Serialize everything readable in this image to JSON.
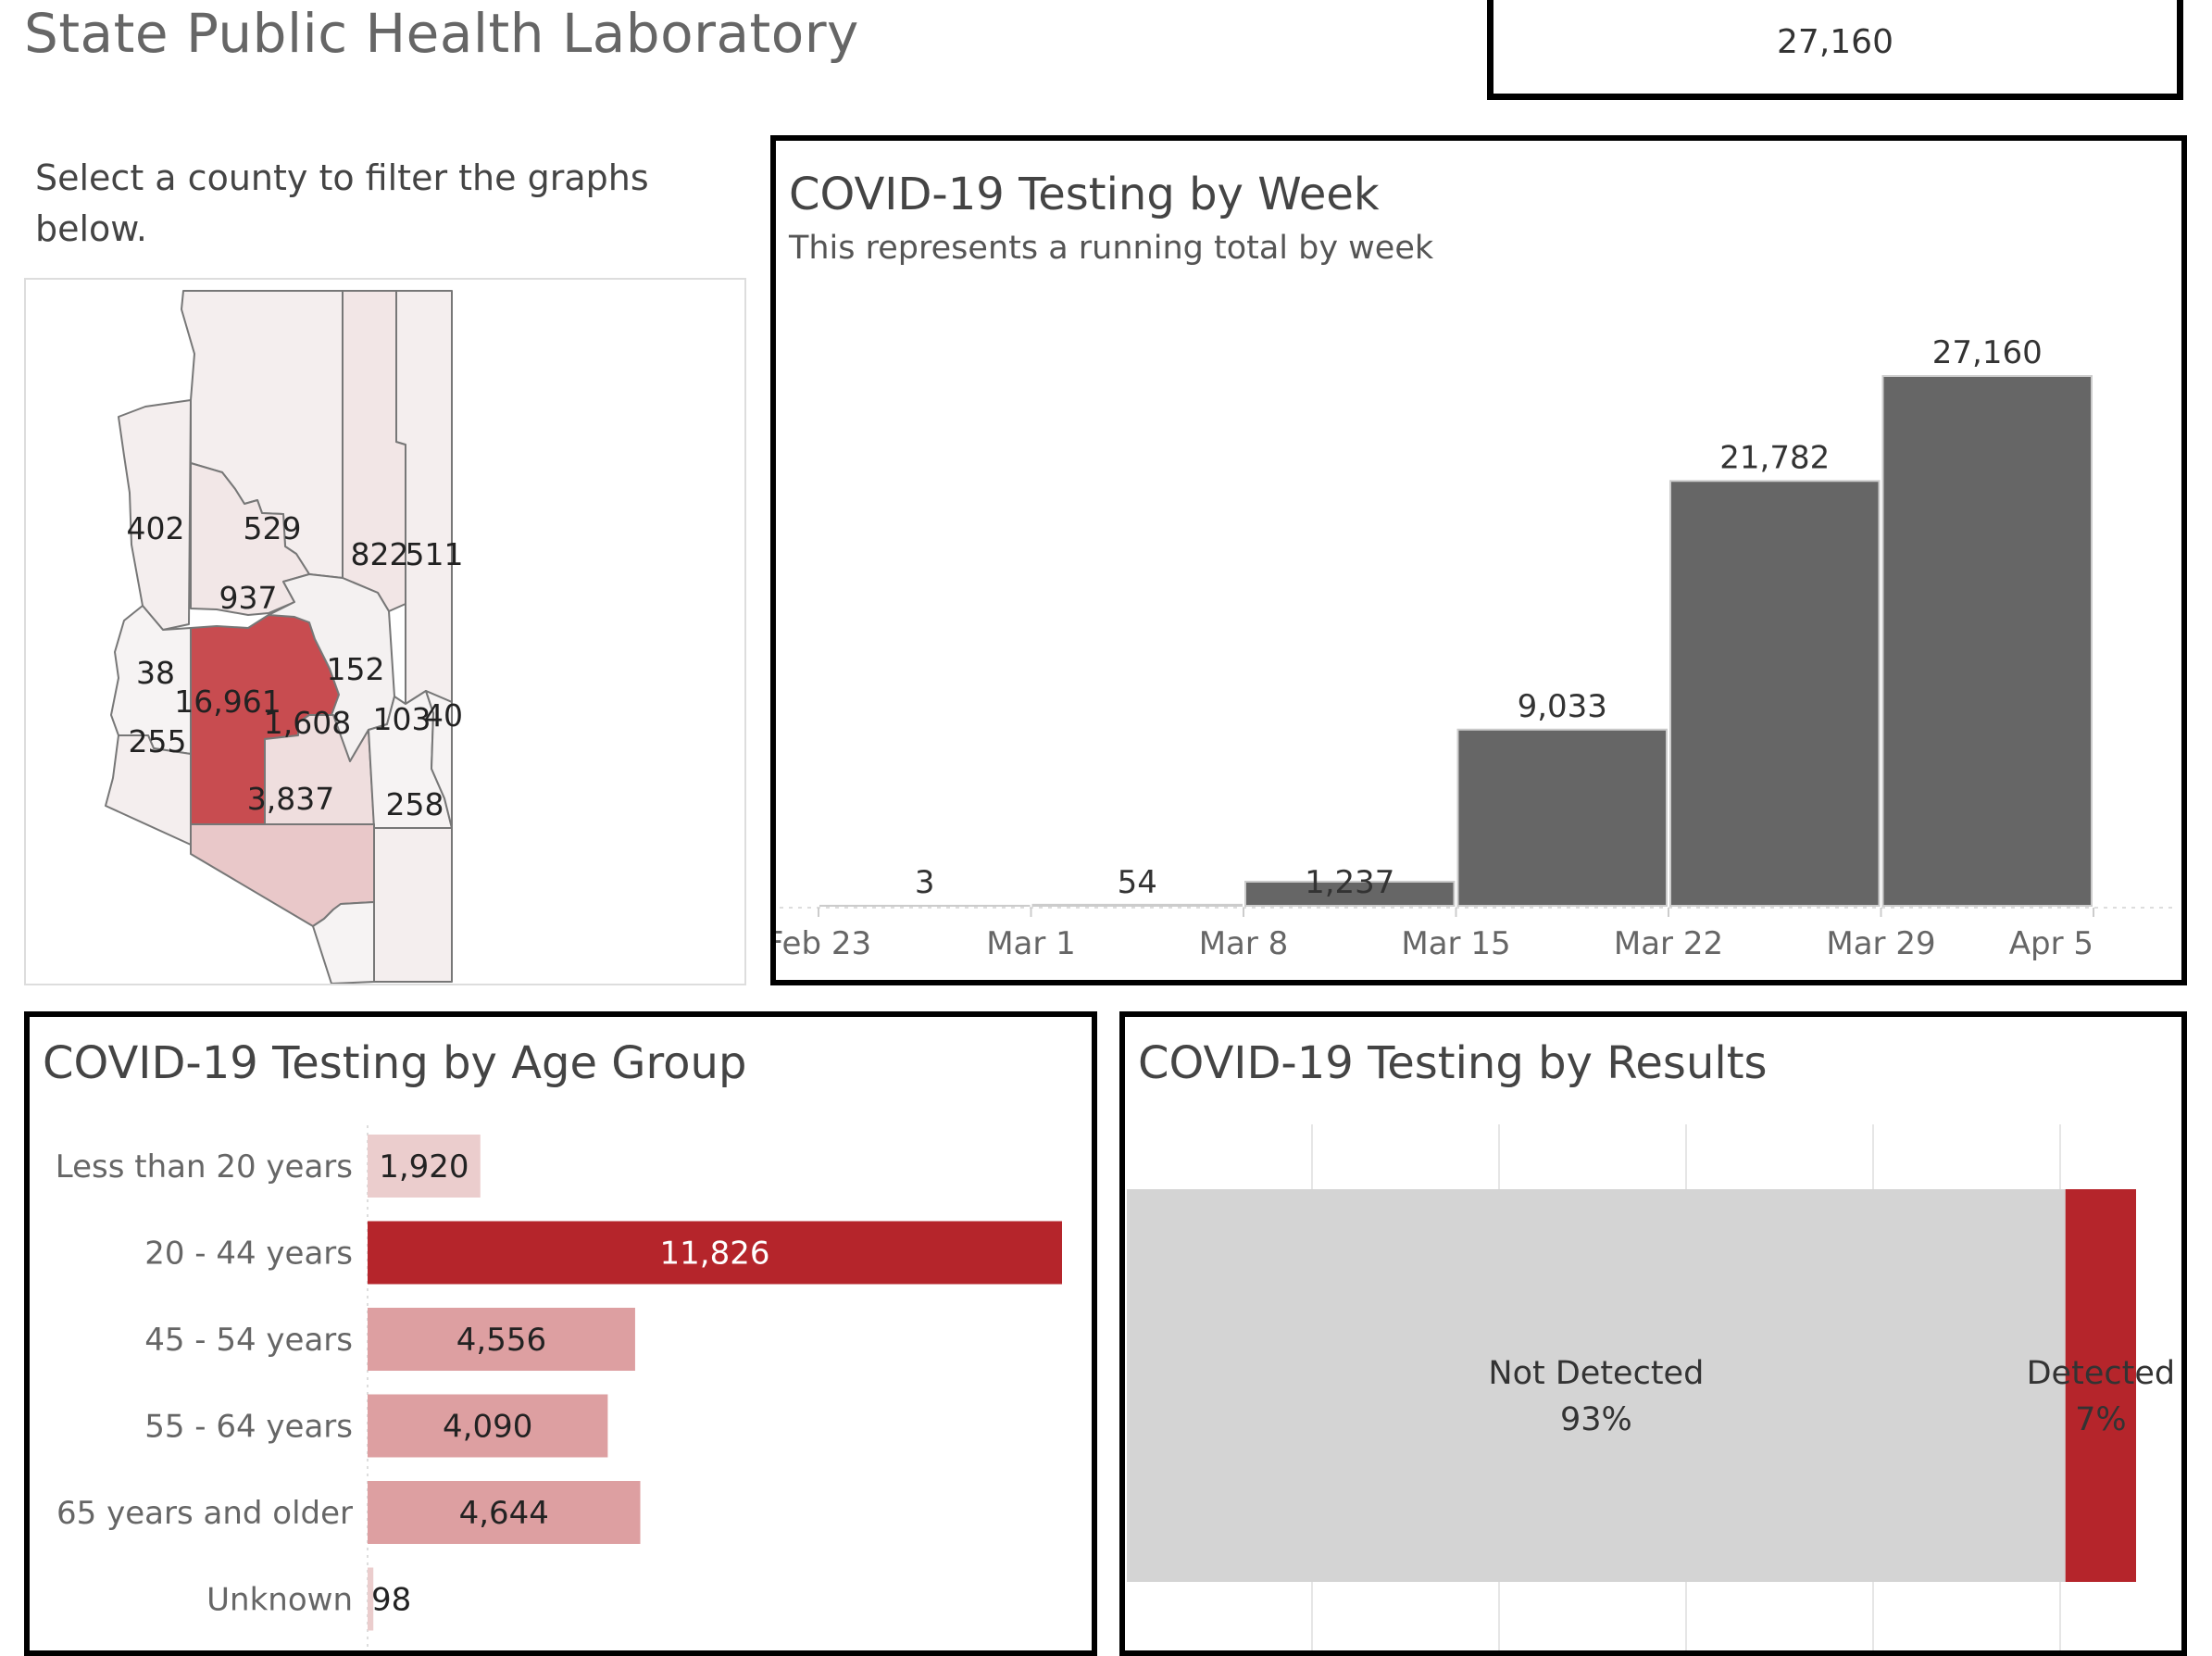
{
  "header": {
    "title": "State Public Health Laboratory",
    "total_tests": "27,160"
  },
  "map": {
    "instruction": "Select a county to filter the graphs below.",
    "counties": [
      {
        "value": "402",
        "fill": "#f4eeee"
      },
      {
        "value": "529",
        "fill": "#f4eeee"
      },
      {
        "value": "822",
        "fill": "#f2e6e6"
      },
      {
        "value": "511",
        "fill": "#f4eeee"
      },
      {
        "value": "937",
        "fill": "#f2e7e7"
      },
      {
        "value": "38",
        "fill": "#f6f3f3"
      },
      {
        "value": "16,961",
        "fill": "#c84c50"
      },
      {
        "value": "152",
        "fill": "#f4f1f1"
      },
      {
        "value": "1,608",
        "fill": "#efdede"
      },
      {
        "value": "103",
        "fill": "#f6f3f3"
      },
      {
        "value": "40",
        "fill": "#f6f3f3"
      },
      {
        "value": "255",
        "fill": "#f4eeee"
      },
      {
        "value": "3,837",
        "fill": "#e9c8c9"
      },
      {
        "value": "258",
        "fill": "#f4eeee"
      }
    ]
  },
  "week_chart": {
    "title": "COVID-19 Testing by Week",
    "subtitle": "This represents a running total by week"
  },
  "age_chart": {
    "title": "COVID-19 Testing by Age Group"
  },
  "results_chart": {
    "title": "COVID-19 Testing by Results"
  },
  "colors": {
    "week_bar": "#666666",
    "detected": "#b5252b",
    "not_detected": "#d4d4d4",
    "age_max": "#b5252b",
    "age_mid": "#dd9fa1",
    "age_low": "#ebcdcd"
  },
  "chart_data": [
    {
      "type": "bar",
      "title": "COVID-19 Testing by Week",
      "subtitle": "This represents a running total by week",
      "categories": [
        "Feb 23",
        "Mar 1",
        "Mar 8",
        "Mar 15",
        "Mar 22",
        "Mar 29"
      ],
      "x_ticks": [
        "Feb 23",
        "Mar 1",
        "Mar 8",
        "Mar 15",
        "Mar 22",
        "Mar 29",
        "Apr 5"
      ],
      "values": [
        3,
        54,
        1237,
        9033,
        21782,
        27160
      ],
      "labels": [
        "3",
        "54",
        "1,237",
        "9,033",
        "21,782",
        "27,160"
      ],
      "ylim": [
        0,
        27160
      ],
      "grid": false
    },
    {
      "type": "bar",
      "orientation": "horizontal",
      "title": "COVID-19 Testing by Age Group",
      "categories": [
        "Less than 20 years",
        "20 - 44 years",
        "45 - 54 years",
        "55 - 64 years",
        "65 years and older",
        "Unknown"
      ],
      "values": [
        1920,
        11826,
        4556,
        4090,
        4644,
        98
      ],
      "labels": [
        "1,920",
        "11,826",
        "4,556",
        "4,090",
        "4,644",
        "98"
      ]
    },
    {
      "type": "bar",
      "orientation": "stacked-horizontal",
      "title": "COVID-19 Testing by Results",
      "categories": [
        "Not Detected",
        "Detected"
      ],
      "values": [
        93,
        7
      ],
      "labels": [
        "93%",
        "7%"
      ]
    }
  ]
}
